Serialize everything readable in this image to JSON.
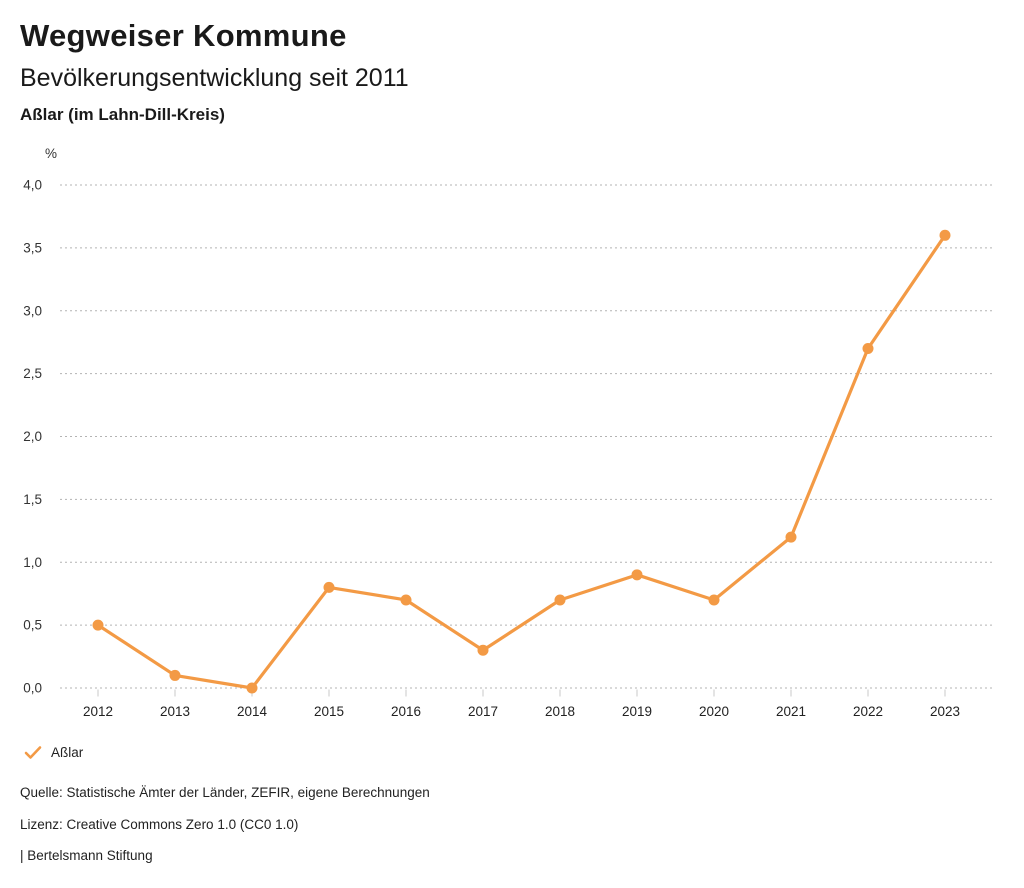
{
  "header": {
    "title": "Wegweiser Kommune",
    "subtitle": "Bevölkerungsentwicklung seit 2011",
    "region": "Aßlar (im Lahn-Dill-Kreis)"
  },
  "chart_data": {
    "type": "line",
    "title": "Bevölkerungsentwicklung seit 2011",
    "subtitle": "Aßlar (im Lahn-Dill-Kreis)",
    "unit_label": "%",
    "xlabel": "",
    "ylabel": "%",
    "categories": [
      "2012",
      "2013",
      "2014",
      "2015",
      "2016",
      "2017",
      "2018",
      "2019",
      "2020",
      "2021",
      "2022",
      "2023"
    ],
    "series": [
      {
        "name": "Aßlar",
        "values": [
          0.5,
          0.1,
          0.0,
          0.8,
          0.7,
          0.3,
          0.7,
          0.9,
          0.7,
          1.2,
          2.7,
          3.6
        ]
      }
    ],
    "ylim": [
      0,
      4
    ],
    "ytick_step": 0.5,
    "ytick_labels": [
      "0,0",
      "0,5",
      "1,0",
      "1,5",
      "2,0",
      "2,5",
      "3,0",
      "3,5",
      "4,0"
    ],
    "grid": true,
    "grid_style": "dotted-horizontal",
    "legend_position": "bottom-left",
    "line_color": "#F39A45",
    "grid_color": "#B3B3B3",
    "tick_color": "#C9C9C9",
    "text_color": "#222222"
  },
  "legend": {
    "items": [
      {
        "label": "Aßlar",
        "color": "#F39A45",
        "marker": "check"
      }
    ]
  },
  "footer": {
    "source": "Quelle: Statistische Ämter der Länder, ZEFIR, eigene Berechnungen",
    "license": "Lizenz: Creative Commons Zero 1.0 (CC0 1.0)",
    "attribution": "| Bertelsmann Stiftung"
  }
}
